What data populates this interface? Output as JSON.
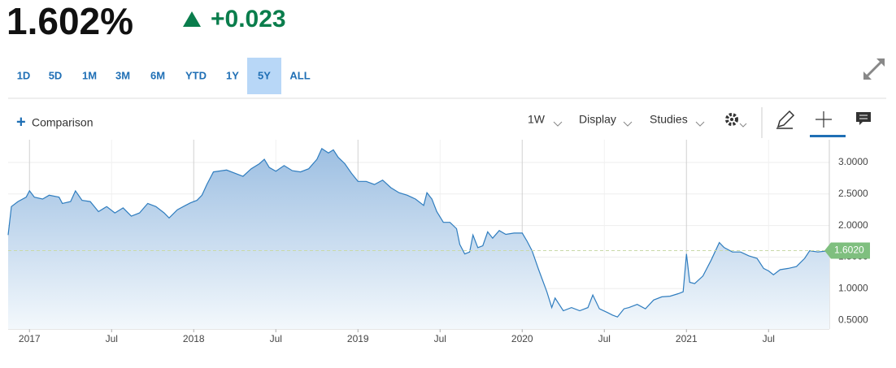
{
  "header": {
    "price": "1.602%",
    "change": "+0.023"
  },
  "ranges": [
    "1D",
    "5D",
    "1M",
    "3M",
    "6M",
    "YTD",
    "1Y",
    "5Y",
    "ALL"
  ],
  "active_range": "5Y",
  "toolbar": {
    "comparison": "Comparison",
    "interval": "1W",
    "display": "Display",
    "studies": "Studies"
  },
  "chart_data": {
    "type": "area",
    "color": "#2f7dbf",
    "x": [
      2016.87,
      2016.89,
      2016.93,
      2016.98,
      2017.0,
      2017.03,
      2017.08,
      2017.12,
      2017.18,
      2017.2,
      2017.25,
      2017.28,
      2017.32,
      2017.37,
      2017.42,
      2017.47,
      2017.52,
      2017.57,
      2017.62,
      2017.67,
      2017.72,
      2017.77,
      2017.82,
      2017.85,
      2017.9,
      2017.95,
      2017.98,
      2018.02,
      2018.05,
      2018.08,
      2018.12,
      2018.2,
      2018.25,
      2018.3,
      2018.35,
      2018.4,
      2018.43,
      2018.46,
      2018.5,
      2018.55,
      2018.6,
      2018.65,
      2018.7,
      2018.75,
      2018.78,
      2018.82,
      2018.85,
      2018.88,
      2018.92,
      2018.96,
      2019.0,
      2019.05,
      2019.1,
      2019.15,
      2019.2,
      2019.25,
      2019.3,
      2019.35,
      2019.4,
      2019.42,
      2019.45,
      2019.48,
      2019.52,
      2019.56,
      2019.6,
      2019.62,
      2019.65,
      2019.68,
      2019.7,
      2019.73,
      2019.76,
      2019.79,
      2019.82,
      2019.86,
      2019.9,
      2019.95,
      2020.0,
      2020.03,
      2020.06,
      2020.1,
      2020.15,
      2020.18,
      2020.2,
      2020.25,
      2020.3,
      2020.35,
      2020.4,
      2020.43,
      2020.47,
      2020.52,
      2020.55,
      2020.58,
      2020.62,
      2020.65,
      2020.7,
      2020.75,
      2020.8,
      2020.85,
      2020.9,
      2020.95,
      2020.98,
      2021.0,
      2021.02,
      2021.05,
      2021.1,
      2021.15,
      2021.2,
      2021.23,
      2021.28,
      2021.33,
      2021.38,
      2021.43,
      2021.47,
      2021.5,
      2021.53,
      2021.57,
      2021.62,
      2021.67,
      2021.72,
      2021.75,
      2021.8,
      2021.87
    ],
    "values": [
      1.85,
      2.3,
      2.38,
      2.45,
      2.55,
      2.45,
      2.42,
      2.48,
      2.45,
      2.35,
      2.38,
      2.55,
      2.4,
      2.38,
      2.22,
      2.3,
      2.2,
      2.28,
      2.15,
      2.2,
      2.35,
      2.3,
      2.2,
      2.12,
      2.25,
      2.32,
      2.36,
      2.4,
      2.48,
      2.65,
      2.85,
      2.88,
      2.83,
      2.78,
      2.9,
      2.98,
      3.05,
      2.92,
      2.86,
      2.95,
      2.87,
      2.85,
      2.9,
      3.05,
      3.22,
      3.15,
      3.2,
      3.08,
      2.98,
      2.83,
      2.7,
      2.7,
      2.65,
      2.72,
      2.6,
      2.52,
      2.48,
      2.42,
      2.32,
      2.52,
      2.42,
      2.22,
      2.05,
      2.05,
      1.95,
      1.7,
      1.55,
      1.58,
      1.85,
      1.65,
      1.68,
      1.9,
      1.8,
      1.92,
      1.86,
      1.88,
      1.88,
      1.75,
      1.6,
      1.3,
      0.95,
      0.7,
      0.85,
      0.65,
      0.7,
      0.65,
      0.7,
      0.9,
      0.68,
      0.62,
      0.58,
      0.55,
      0.68,
      0.7,
      0.75,
      0.68,
      0.82,
      0.87,
      0.88,
      0.92,
      0.95,
      1.55,
      1.1,
      1.08,
      1.2,
      1.45,
      1.73,
      1.65,
      1.58,
      1.58,
      1.52,
      1.48,
      1.32,
      1.28,
      1.22,
      1.3,
      1.32,
      1.35,
      1.48,
      1.6,
      1.58,
      1.602
    ],
    "xlim": [
      2016.87,
      2021.87
    ],
    "xticks": [
      {
        "value": 2017,
        "label": "2017"
      },
      {
        "value": 2017.5,
        "label": "Jul"
      },
      {
        "value": 2018,
        "label": "2018"
      },
      {
        "value": 2018.5,
        "label": "Jul"
      },
      {
        "value": 2019,
        "label": "2019"
      },
      {
        "value": 2019.5,
        "label": "Jul"
      },
      {
        "value": 2020,
        "label": "2020"
      },
      {
        "value": 2020.5,
        "label": "Jul"
      },
      {
        "value": 2021,
        "label": "2021"
      },
      {
        "value": 2021.5,
        "label": "Jul"
      }
    ],
    "ylim": [
      0.36,
      3.36
    ],
    "yticks": [
      {
        "value": 0.5,
        "label": "0.5000"
      },
      {
        "value": 1,
        "label": "1.0000"
      },
      {
        "value": 1.5,
        "label": "1.5000"
      },
      {
        "value": 2,
        "label": "2.0000"
      },
      {
        "value": 2.5,
        "label": "2.5000"
      },
      {
        "value": 3,
        "label": "3.0000"
      }
    ],
    "last_value": {
      "value": 1.602,
      "label": "1.6020"
    },
    "grid": true
  }
}
